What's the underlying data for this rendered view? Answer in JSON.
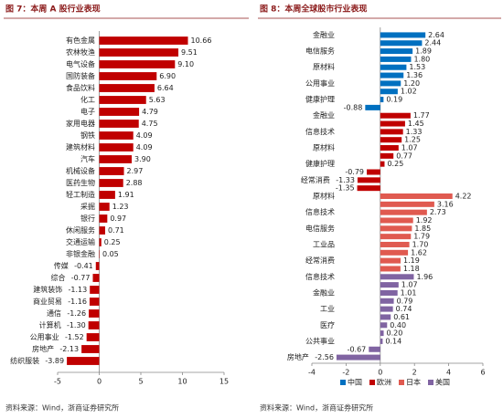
{
  "chart_data": [
    {
      "type": "bar",
      "orientation": "horizontal",
      "title": "图 7：本周 A 股行业表现",
      "source": "资料来源：Wind，浙商证券研究所",
      "categories": [
        "有色金属",
        "农林牧渔",
        "电气设备",
        "国防装备",
        "食品饮料",
        "化工",
        "电子",
        "家用电器",
        "钢铁",
        "建筑材料",
        "汽车",
        "机械设备",
        "医药生物",
        "轻工制造",
        "采掘",
        "银行",
        "休闲服务",
        "交通运输",
        "非银金融",
        "传媒",
        "综合",
        "建筑装饰",
        "商业贸易",
        "通信",
        "计算机",
        "公用事业",
        "房地产",
        "纺织服装"
      ],
      "values": [
        10.66,
        9.51,
        9.1,
        6.9,
        6.64,
        5.63,
        4.79,
        4.75,
        4.09,
        4.09,
        3.9,
        2.97,
        2.88,
        1.91,
        1.23,
        0.97,
        0.71,
        0.25,
        0.05,
        -0.41,
        -0.77,
        -1.13,
        -1.16,
        -1.26,
        -1.3,
        -1.52,
        -2.13,
        -3.89
      ],
      "value_labels": [
        "10.66",
        "9.51",
        "9.10",
        "6.90",
        "6.64",
        "5.63",
        "4.79",
        "4.75",
        "4.09",
        "4.09",
        "3.90",
        "2.97",
        "2.88",
        "1.91",
        "1.23",
        "0.97",
        "0.71",
        "0.25",
        "0.05",
        "-0.41",
        "-0.77",
        "-1.13",
        "-1.16",
        "-1.26",
        "-1.30",
        "-1.52",
        "-2.13",
        "-3.89"
      ],
      "color": "#c00000",
      "xlim": [
        -5,
        15
      ],
      "xticks": [
        -5,
        0,
        5,
        10,
        15
      ],
      "grid": false
    },
    {
      "type": "bar",
      "orientation": "horizontal",
      "title": "图 8：本周全球股市行业表现",
      "source": "资料来源：Wind，浙商证券研究所",
      "categories": [
        "金融业",
        null,
        "电信服务",
        null,
        "原材料",
        null,
        "公用事业",
        null,
        "健康护理",
        null,
        "金融业",
        null,
        "信息技术",
        null,
        "原材料",
        null,
        "健康护理",
        null,
        "经常消费",
        null,
        "原材料",
        null,
        "信息技术",
        null,
        "电信服务",
        null,
        "工业品",
        null,
        "经常消费",
        null,
        "信息技术",
        null,
        "金融业",
        null,
        "工业",
        null,
        "医疗",
        null,
        "公共事业",
        null,
        "房地产"
      ],
      "series": [
        {
          "name": "中国",
          "color": "#0070c0",
          "values": [
            2.64,
            2.44,
            1.89,
            1.8,
            1.53,
            1.36,
            1.2,
            1.02,
            0.19,
            -0.88,
            null,
            null,
            null,
            null,
            null,
            null,
            null,
            null,
            null,
            null,
            null,
            null,
            null,
            null,
            null,
            null,
            null,
            null,
            null,
            null,
            null,
            null,
            null,
            null,
            null,
            null,
            null,
            null,
            null,
            null,
            null
          ],
          "value_labels": [
            "2.64",
            "2.44",
            "1.89",
            "1.80",
            "1.53",
            "1.36",
            "1.20",
            "1.02",
            "0.19",
            "-0.88",
            null,
            null,
            null,
            null,
            null,
            null,
            null,
            null,
            null,
            null,
            null,
            null,
            null,
            null,
            null,
            null,
            null,
            null,
            null,
            null,
            null,
            null,
            null,
            null,
            null,
            null,
            null,
            null,
            null,
            null,
            null
          ]
        },
        {
          "name": "欧洲",
          "color": "#c00000",
          "values": [
            null,
            null,
            null,
            null,
            null,
            null,
            null,
            null,
            null,
            null,
            1.77,
            1.45,
            1.33,
            1.25,
            1.07,
            0.77,
            0.25,
            -0.79,
            -1.33,
            -1.35,
            null,
            null,
            null,
            null,
            null,
            null,
            null,
            null,
            null,
            null,
            null,
            null,
            null,
            null,
            null,
            null,
            null,
            null,
            null,
            null,
            null
          ],
          "value_labels": [
            null,
            null,
            null,
            null,
            null,
            null,
            null,
            null,
            null,
            null,
            "1.77",
            "1.45",
            "1.33",
            "1.25",
            "1.07",
            "0.77",
            "0.25",
            "-0.79",
            "-1.33",
            "-1.35",
            null,
            null,
            null,
            null,
            null,
            null,
            null,
            null,
            null,
            null,
            null,
            null,
            null,
            null,
            null,
            null,
            null,
            null,
            null,
            null,
            null
          ]
        },
        {
          "name": "日本",
          "color": "#e05a50",
          "values": [
            null,
            null,
            null,
            null,
            null,
            null,
            null,
            null,
            null,
            null,
            null,
            null,
            null,
            null,
            null,
            null,
            null,
            null,
            null,
            null,
            4.22,
            3.16,
            2.73,
            1.92,
            1.85,
            1.79,
            1.7,
            1.62,
            1.19,
            1.18,
            null,
            null,
            null,
            null,
            null,
            null,
            null,
            null,
            null,
            null,
            null
          ],
          "value_labels": [
            null,
            null,
            null,
            null,
            null,
            null,
            null,
            null,
            null,
            null,
            null,
            null,
            null,
            null,
            null,
            null,
            null,
            null,
            null,
            null,
            "4.22",
            "3.16",
            "2.73",
            "1.92",
            "1.85",
            "1.79",
            "1.70",
            "1.62",
            "1.19",
            "1.18",
            null,
            null,
            null,
            null,
            null,
            null,
            null,
            null,
            null,
            null,
            null
          ]
        },
        {
          "name": "美国",
          "color": "#8064a2",
          "values": [
            null,
            null,
            null,
            null,
            null,
            null,
            null,
            null,
            null,
            null,
            null,
            null,
            null,
            null,
            null,
            null,
            null,
            null,
            null,
            null,
            null,
            null,
            null,
            null,
            null,
            null,
            null,
            null,
            null,
            null,
            1.96,
            1.07,
            1.01,
            0.79,
            0.74,
            0.61,
            0.4,
            0.2,
            0.14,
            -0.67,
            -2.56
          ],
          "value_labels": [
            null,
            null,
            null,
            null,
            null,
            null,
            null,
            null,
            null,
            null,
            null,
            null,
            null,
            null,
            null,
            null,
            null,
            null,
            null,
            null,
            null,
            null,
            null,
            null,
            null,
            null,
            null,
            null,
            null,
            null,
            "1.96",
            "1.07",
            "1.01",
            "0.79",
            "0.74",
            "0.61",
            "0.40",
            "0.20",
            "0.14",
            "-0.67",
            "-2.56"
          ]
        }
      ],
      "xlim": [
        -4,
        6
      ],
      "xticks": [
        -4,
        -2,
        0,
        2,
        4,
        6
      ],
      "grid": false,
      "legend": "bottom"
    }
  ]
}
